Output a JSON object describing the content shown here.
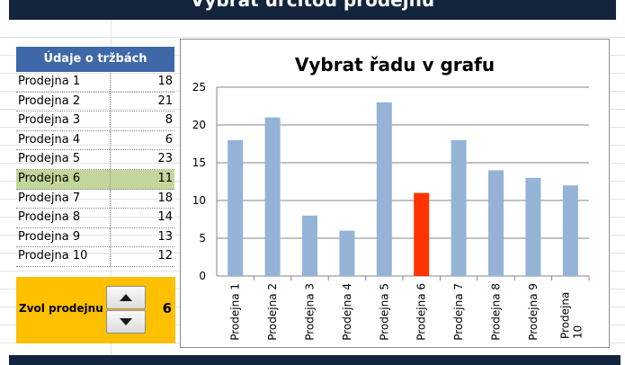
{
  "banner": {
    "title": "Vybrat určitou prodejnu"
  },
  "table": {
    "header": "Údaje o tržbách",
    "rows": [
      {
        "label": "Prodejna 1",
        "value": "18"
      },
      {
        "label": "Prodejna 2",
        "value": "21"
      },
      {
        "label": "Prodejna 3",
        "value": "8"
      },
      {
        "label": "Prodejna 4",
        "value": "6"
      },
      {
        "label": "Prodejna 5",
        "value": "23"
      },
      {
        "label": "Prodejna 6",
        "value": "11"
      },
      {
        "label": "Prodejna 7",
        "value": "18"
      },
      {
        "label": "Prodejna 8",
        "value": "14"
      },
      {
        "label": "Prodejna 9",
        "value": "13"
      },
      {
        "label": "Prodejna 10",
        "value": "12"
      }
    ],
    "selected_index": 5,
    "selected_color": "#c3d69b"
  },
  "selector": {
    "label": "Zvol prodejnu",
    "value": "6",
    "background": "#ffc000",
    "up_icon": "triangle-up-icon",
    "down_icon": "triangle-down-icon"
  },
  "chart_data": {
    "type": "bar",
    "title": "Vybrat řadu v grafu",
    "categories": [
      "Prodejna 1",
      "Prodejna 2",
      "Prodejna 3",
      "Prodejna 4",
      "Prodejna 5",
      "Prodejna 6",
      "Prodejna 7",
      "Prodejna 8",
      "Prodejna 9",
      "Prodejna 10"
    ],
    "values": [
      18,
      21,
      8,
      6,
      23,
      11,
      18,
      14,
      13,
      12
    ],
    "ylim": [
      0,
      25
    ],
    "yticks": [
      0,
      5,
      10,
      15,
      20,
      25
    ],
    "grid": true,
    "highlight_index": 5,
    "bar_color": "#95b3d7",
    "highlight_color": "#ff3300"
  }
}
